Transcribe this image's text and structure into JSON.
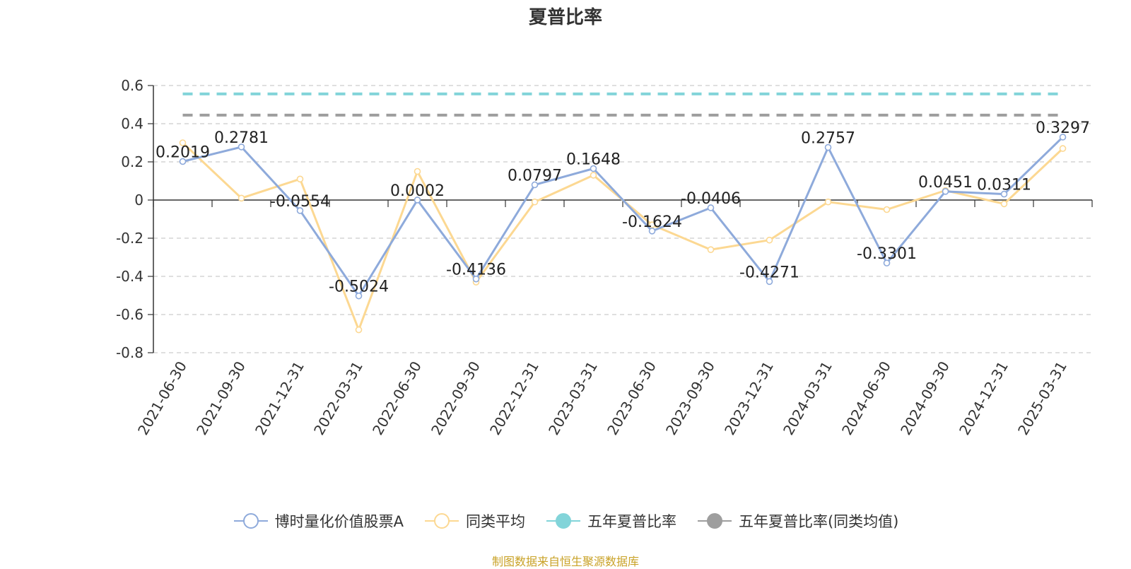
{
  "chart_data": {
    "type": "line",
    "title": "夏普比率",
    "categories": [
      "2021-06-30",
      "2021-09-30",
      "2021-12-31",
      "2022-03-31",
      "2022-06-30",
      "2022-09-30",
      "2022-12-31",
      "2023-03-31",
      "2023-06-30",
      "2023-09-30",
      "2023-12-31",
      "2024-03-31",
      "2024-06-30",
      "2024-09-30",
      "2024-12-31",
      "2025-03-31"
    ],
    "ylim": [
      -0.8,
      0.6
    ],
    "yticks": [
      "0.6",
      "0.4",
      "0.2",
      "0",
      "-0.2",
      "-0.4",
      "-0.6",
      "-0.8"
    ],
    "ytick_values": [
      0.6,
      0.4,
      0.2,
      0,
      -0.2,
      -0.4,
      -0.6,
      -0.8
    ],
    "grid": true,
    "legend_position": "bottom",
    "series": [
      {
        "name": "博时量化价值股票A",
        "color": "#8eaadb",
        "marker": "hollow-circle",
        "values": [
          0.2019,
          0.2781,
          -0.0554,
          -0.5024,
          0.0002,
          -0.4136,
          0.0797,
          0.1648,
          -0.1624,
          -0.0406,
          -0.4271,
          0.2757,
          -0.3301,
          0.0451,
          0.0311,
          0.3297
        ],
        "labels": [
          "0.2019",
          "0.2781",
          "-0.0554",
          "-0.5024",
          "0.0002",
          "-0.4136",
          "0.0797",
          "0.1648",
          "-0.1624",
          "-0.0406",
          "-0.4271",
          "0.2757",
          "-0.3301",
          "0.0451",
          "0.0311",
          "0.3297"
        ]
      },
      {
        "name": "同类平均",
        "color": "#fcd892",
        "marker": "hollow-circle",
        "values": [
          0.3,
          0.01,
          0.11,
          -0.68,
          0.15,
          -0.43,
          -0.01,
          0.13,
          -0.13,
          -0.26,
          -0.21,
          -0.01,
          -0.05,
          0.05,
          -0.02,
          0.27
        ]
      },
      {
        "name": "五年夏普比率",
        "color": "#82d4d9",
        "marker": "filled-circle",
        "style": "dashed",
        "value": 0.556
      },
      {
        "name": "五年夏普比率(同类均值)",
        "color": "#9e9e9e",
        "marker": "filled-circle",
        "style": "dashed",
        "value": 0.445
      }
    ]
  },
  "source_note": "制图数据来自恒生聚源数据库"
}
